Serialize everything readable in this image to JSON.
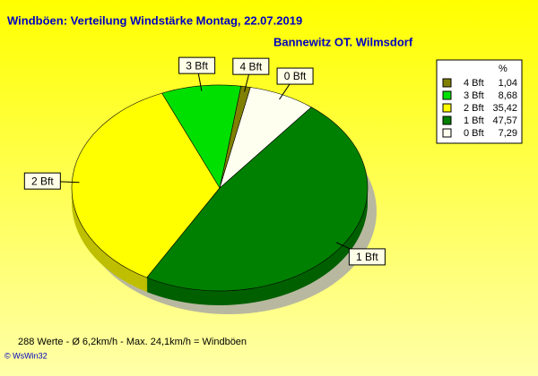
{
  "chart_data": {
    "type": "pie",
    "title": "Windböen: Verteilung Windstärke  Montag, 22.07.2019",
    "subtitle": "Bannewitz OT. Wilmsdorf",
    "legend_title": "%",
    "categories": [
      "4 Bft",
      "3 Bft",
      "2 Bft",
      "1 Bft",
      "0 Bft"
    ],
    "values": [
      1.04,
      8.68,
      35.42,
      47.57,
      7.29
    ],
    "value_labels": [
      "1,04",
      "8,68",
      "35,42",
      "47,57",
      "7,29"
    ],
    "colors": [
      "#808000",
      "#00e000",
      "#ffff00",
      "#008000",
      "#fffff0"
    ],
    "footer": "288 Werte   -   Ø 6,2km/h   -   Max. 24,1km/h = Windböen",
    "credit": "© WsWin32"
  }
}
